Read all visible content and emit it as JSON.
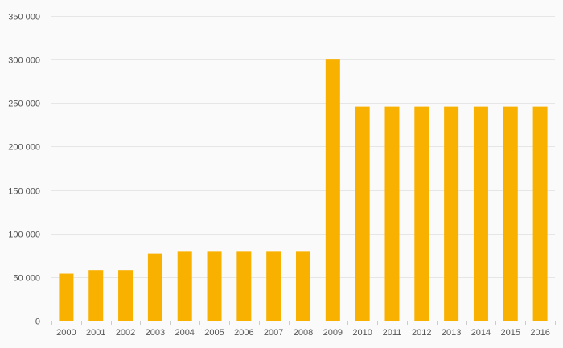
{
  "chart_data": {
    "type": "bar",
    "categories": [
      "2000",
      "2001",
      "2002",
      "2003",
      "2004",
      "2005",
      "2006",
      "2007",
      "2008",
      "2009",
      "2010",
      "2011",
      "2012",
      "2013",
      "2014",
      "2015",
      "2016"
    ],
    "values": [
      54000,
      58000,
      58000,
      77000,
      80000,
      80000,
      80000,
      80000,
      80000,
      300000,
      246000,
      246000,
      246000,
      246000,
      246000,
      246000,
      246000
    ],
    "title": "",
    "xlabel": "",
    "ylabel": "",
    "ylim": [
      0,
      350000
    ],
    "yticks": [
      0,
      50000,
      100000,
      150000,
      200000,
      250000,
      300000,
      350000
    ],
    "ytick_labels": [
      "0",
      "50 000",
      "100 000",
      "150 000",
      "200 000",
      "250 000",
      "300 000",
      "350 000"
    ],
    "grid": true,
    "legend": "none",
    "bar_color": "#f9b100"
  }
}
